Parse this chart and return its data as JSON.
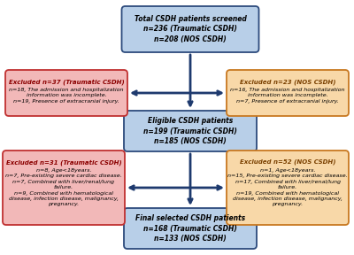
{
  "bg_color": "#ffffff",
  "box_blue_face": "#b8cfe8",
  "box_blue_edge": "#2c4a7c",
  "box_red_face": "#f2b8b8",
  "box_red_edge": "#c03030",
  "box_orange_face": "#f8d8a8",
  "box_orange_edge": "#c87820",
  "arrow_color": "#1e3a6e",
  "text_color": "#000000",
  "bold_color": "#8b0000",
  "orange_bold": "#7a4000",
  "top_box_text": "Total CSDH patients screened\nn=236 (Traumatic CSDH)\nn=208 (NOS CSDH)",
  "mid_box_text": "Eligible CSDH patients\nn=199 (Traumatic CSDH)\nn=185 (NOS CSDH)",
  "bot_box_text": "Final selected CSDH patients\nn=168 (Traumatic CSDH)\nn=133 (NOS CSDH)",
  "excl_left1_title": "Excluded n=37 (Traumatic CSDH)",
  "excl_left1_lines": "n=18, The admission and hospitalization\ninformation was incomplete.\nn=19, Presence of extracranial injury.",
  "excl_right1_title": "Excluded n=23 (NOS CSDH)",
  "excl_right1_lines": "n=16, The admission and hospitalization\ninformation was incomplete.\nn=7, Presence of extracranial injury.",
  "excl_left2_title": "Excluded n=31 (Traumatic CSDH)",
  "excl_left2_lines": "n=8, Age<18years.\nn=7, Pre-existing severe cardiac disease.\nn=7, Combined with liver/renal/lung\nfailure.\nn=9, Combined with hematological\ndisease, infection disease, malignancy,\npregnancy.",
  "excl_right2_title": "Excluded n=52 (NOS CSDH)",
  "excl_right2_lines": "n=1, Age<18years.\nn=15, Pre-existing severe cardiac disease.\nn=17, Combined with liver/renal/lung\nfailure.\nn=19, Combined with hematological\ndisease, infection disease, malignancy,\npregnancy."
}
